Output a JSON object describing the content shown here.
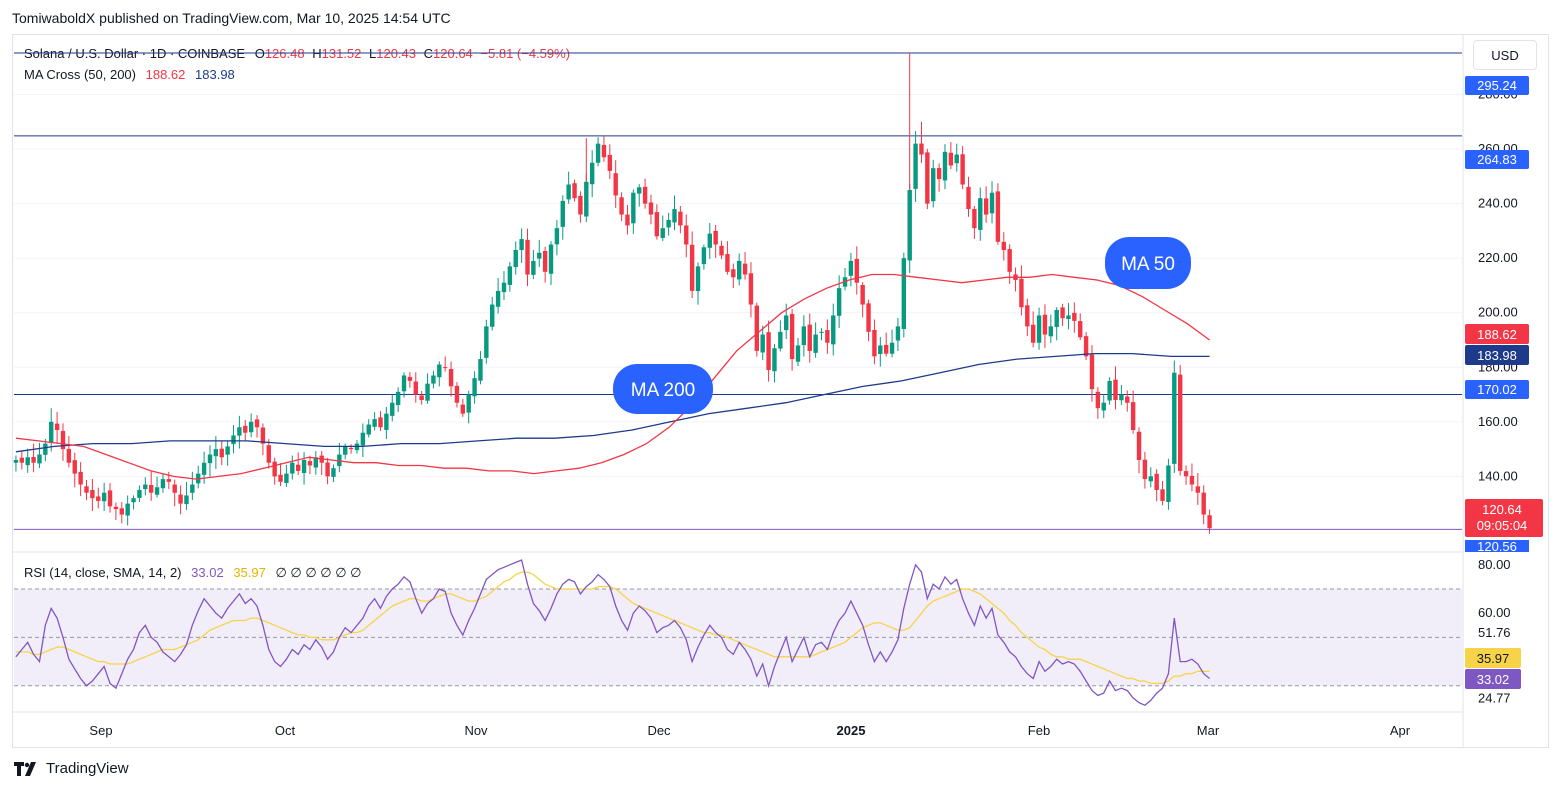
{
  "caption": "TomiwaboldX published on TradingView.com, Mar 10, 2025 14:54 UTC",
  "legend": {
    "symbol": "Solana / U.S. Dollar · 1D · COINBASE",
    "o_label": "O",
    "o_value": "126.48",
    "h_label": "H",
    "h_value": "131.52",
    "l_label": "L",
    "l_value": "120.43",
    "c_label": "C",
    "c_value": "120.64",
    "change": "−5.81 (−4.59%)",
    "ma_label": "MA Cross (50, 200)",
    "ma50_value": "188.62",
    "ma200_value": "183.98",
    "rsi_label": "RSI (14, close, SMA, 14, 2)",
    "rsi_value": "33.02",
    "rsi_sma_value": "35.97",
    "rsi_extra": "∅ ∅ ∅ ∅ ∅ ∅"
  },
  "currency_button": "USD",
  "brand": "TradingView",
  "chart_data": [
    {
      "type": "candlestick",
      "title": "Solana / U.S. Dollar · 1D · COINBASE",
      "ylim": [
        113,
        300
      ],
      "yticks": [
        "140.00",
        "160.00",
        "180.00",
        "200.00",
        "220.00",
        "240.00",
        "260.00",
        "280.00"
      ],
      "xticks": [
        "Sep",
        "Oct",
        "Nov",
        "Dec",
        "2025",
        "Feb",
        "Mar",
        "Apr"
      ],
      "days": 203,
      "closes": [
        146,
        145,
        147,
        145,
        148,
        152,
        160,
        157,
        150,
        145,
        141,
        137,
        134,
        132,
        131,
        134,
        129,
        128,
        126,
        130,
        132,
        135,
        137,
        134,
        136,
        139,
        138,
        134,
        130,
        133,
        137,
        141,
        145,
        148,
        150,
        147,
        151,
        155,
        158,
        156,
        160,
        158,
        152,
        145,
        140,
        138,
        141,
        145,
        142,
        146,
        144,
        147,
        145,
        140,
        143,
        148,
        151,
        150,
        152,
        156,
        159,
        161,
        158,
        163,
        167,
        171,
        177,
        175,
        170,
        168,
        174,
        177,
        181,
        180,
        173,
        167,
        163,
        170,
        176,
        183,
        195,
        203,
        208,
        211,
        217,
        223,
        227,
        214,
        219,
        222,
        215,
        225,
        231,
        241,
        247,
        242,
        236,
        248,
        255,
        262,
        257,
        252,
        243,
        236,
        232,
        244,
        246,
        240,
        236,
        228,
        231,
        234,
        238,
        232,
        225,
        208,
        217,
        224,
        229,
        225,
        221,
        215,
        213,
        219,
        214,
        203,
        186,
        192,
        179,
        187,
        193,
        199,
        183,
        188,
        195,
        186,
        192,
        193,
        189,
        199,
        209,
        213,
        219,
        211,
        203,
        193,
        184,
        188,
        185,
        189,
        195,
        220,
        245,
        262,
        258,
        240,
        253,
        249,
        259,
        254,
        258,
        247,
        238,
        231,
        242,
        236,
        244,
        226,
        223,
        215,
        212,
        202,
        195,
        189,
        199,
        192,
        195,
        201,
        198,
        199,
        197,
        191,
        184,
        172,
        165,
        167,
        175,
        168,
        170,
        167,
        157,
        146,
        139,
        140,
        135,
        131,
        144,
        178,
        142,
        140,
        137,
        134,
        126,
        121
      ],
      "ma50": [
        154,
        153,
        152,
        151,
        148,
        145,
        142,
        140,
        139,
        140,
        141,
        143,
        145,
        147,
        146,
        145,
        145,
        144,
        144,
        143,
        143,
        142,
        142,
        141,
        142,
        143,
        145,
        148,
        152,
        158,
        166,
        176,
        186,
        193,
        200,
        205,
        209,
        212,
        214,
        214,
        213,
        212,
        211,
        212,
        213,
        213,
        214,
        213,
        212,
        210,
        206,
        201,
        196,
        190
      ],
      "ma200": [
        149,
        151,
        152,
        152,
        153,
        153,
        153,
        152,
        151,
        151,
        152,
        152,
        153,
        154,
        154,
        155,
        157,
        160,
        163,
        165,
        167,
        170,
        173,
        175,
        178,
        181,
        183,
        184,
        185,
        185,
        184,
        184
      ]
    },
    {
      "type": "line",
      "title": "RSI (14, close, SMA, 14, 2)",
      "ylim": [
        20,
        82
      ],
      "yticks": [
        "80.00",
        "60.00",
        "51.76",
        "24.77"
      ],
      "bands": [
        70,
        50,
        30
      ],
      "rsi": [
        42,
        45,
        48,
        43,
        40,
        55,
        62,
        58,
        50,
        41,
        37,
        33,
        30,
        32,
        35,
        38,
        31,
        29,
        35,
        41,
        45,
        52,
        55,
        50,
        48,
        44,
        42,
        40,
        43,
        47,
        55,
        61,
        66,
        63,
        60,
        58,
        62,
        65,
        68,
        64,
        66,
        63,
        55,
        45,
        40,
        38,
        41,
        45,
        43,
        47,
        45,
        49,
        46,
        41,
        44,
        50,
        54,
        52,
        55,
        58,
        63,
        66,
        62,
        67,
        70,
        72,
        75,
        73,
        66,
        60,
        64,
        66,
        70,
        69,
        60,
        55,
        51,
        57,
        62,
        68,
        74,
        76,
        78,
        79,
        80,
        81,
        82,
        72,
        64,
        61,
        57,
        62,
        68,
        72,
        74,
        73,
        68,
        71,
        73,
        76,
        74,
        71,
        63,
        57,
        53,
        60,
        63,
        61,
        58,
        52,
        54,
        55,
        57,
        54,
        49,
        40,
        46,
        51,
        55,
        52,
        50,
        45,
        43,
        48,
        45,
        41,
        34,
        39,
        30,
        38,
        44,
        50,
        40,
        45,
        50,
        42,
        47,
        48,
        45,
        52,
        57,
        60,
        65,
        60,
        55,
        47,
        40,
        44,
        40,
        44,
        49,
        62,
        72,
        80,
        77,
        66,
        72,
        70,
        75,
        72,
        74,
        66,
        60,
        55,
        63,
        58,
        62,
        51,
        48,
        44,
        42,
        38,
        35,
        33,
        40,
        36,
        38,
        41,
        39,
        40,
        39,
        36,
        32,
        28,
        26,
        27,
        32,
        28,
        29,
        28,
        25,
        23,
        22,
        24,
        27,
        29,
        35,
        58,
        40,
        40,
        41,
        39,
        35,
        33
      ],
      "sma": [
        44,
        44,
        44,
        43,
        43,
        44,
        45,
        46,
        46,
        45,
        44,
        43,
        42,
        41,
        40,
        40,
        39,
        39,
        39,
        39,
        40,
        41,
        42,
        43,
        44,
        45,
        45,
        45,
        46,
        47,
        48,
        49,
        51,
        53,
        54,
        55,
        56,
        57,
        57,
        57,
        58,
        58,
        57,
        56,
        55,
        54,
        53,
        52,
        51,
        51,
        50,
        50,
        49,
        49,
        49,
        50,
        51,
        52,
        52,
        53,
        55,
        57,
        59,
        61,
        63,
        64,
        65,
        66,
        66,
        65,
        65,
        66,
        67,
        68,
        68,
        67,
        66,
        65,
        65,
        66,
        67,
        69,
        71,
        73,
        74,
        76,
        77,
        77,
        76,
        74,
        72,
        71,
        70,
        70,
        70,
        70,
        70,
        70,
        70,
        71,
        71,
        71,
        70,
        68,
        66,
        64,
        63,
        62,
        61,
        60,
        59,
        58,
        57,
        56,
        55,
        54,
        53,
        52,
        52,
        51,
        51,
        50,
        49,
        48,
        47,
        46,
        45,
        44,
        43,
        42,
        42,
        42,
        42,
        42,
        42,
        42,
        43,
        44,
        45,
        46,
        47,
        48,
        50,
        52,
        54,
        55,
        56,
        56,
        55,
        54,
        53,
        53,
        54,
        57,
        60,
        63,
        65,
        66,
        67,
        68,
        69,
        70,
        70,
        69,
        68,
        66,
        64,
        62,
        60,
        57,
        55,
        52,
        50,
        48,
        46,
        45,
        43,
        42,
        42,
        41,
        41,
        41,
        40,
        39,
        38,
        37,
        36,
        35,
        34,
        33,
        33,
        32,
        32,
        31,
        31,
        31,
        32,
        34,
        34,
        35,
        35,
        36,
        36,
        36
      ]
    }
  ],
  "price_levels": [
    "295.24",
    "264.83",
    "170.02"
  ],
  "last_price": "120.64",
  "countdown": "09:05:04",
  "low_label": "120.56",
  "ma50_badge": "188.62",
  "ma200_badge": "183.98",
  "rsi_badge": "33.02",
  "rsi_sma_badge": "35.97",
  "annotations": {
    "ma50": "MA 50",
    "ma200": "MA 200"
  },
  "colors": {
    "up": "#089981",
    "down": "#f23645",
    "ma50": "#f23645",
    "ma200": "#1e3a8a",
    "rsi": "#7e57c2",
    "rsi_sma": "#f7d34a",
    "accent": "#2962ff"
  }
}
